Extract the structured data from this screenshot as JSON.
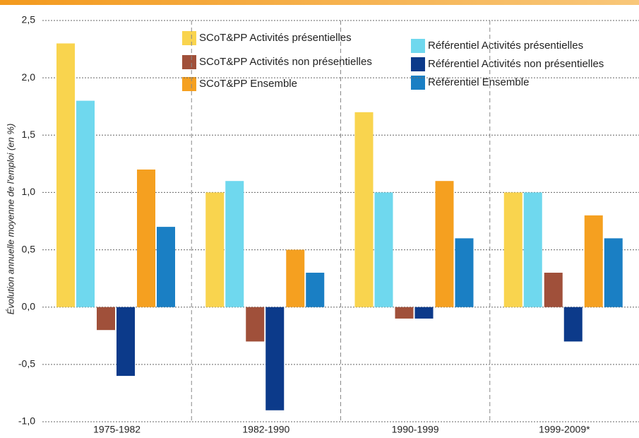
{
  "chart_data": {
    "type": "bar",
    "y_label": "Évolution annuelle moyenne de l'emploi (en %)",
    "categories": [
      "1975-1982",
      "1982-1990",
      "1990-1999",
      "1999-2009*"
    ],
    "series": [
      {
        "name": "SCoT&PP Activités présentielles",
        "color": "#f9d44e",
        "values": [
          2.3,
          1.0,
          1.7,
          1.0
        ]
      },
      {
        "name": "SCoT&PP Activités non présentielles",
        "color": "#a0503a",
        "values": [
          -0.2,
          -0.3,
          -0.1,
          0.3
        ]
      },
      {
        "name": "SCoT&PP Ensemble",
        "color": "#f5a020",
        "values": [
          1.2,
          0.5,
          1.1,
          0.8
        ]
      },
      {
        "name": "Référentiel Activités présentielles",
        "color": "#6fd8ee",
        "values": [
          1.8,
          1.1,
          1.0,
          1.0
        ]
      },
      {
        "name": "Référentiel Activités non présentielles",
        "color": "#0c3a8a",
        "values": [
          -0.6,
          -0.9,
          -0.1,
          -0.3
        ]
      },
      {
        "name": "Référentiel Ensemble",
        "color": "#1a7fc4",
        "values": [
          0.7,
          0.3,
          0.6,
          0.6
        ]
      }
    ],
    "ylim": [
      -1.0,
      2.5
    ],
    "yticks": [
      {
        "value": 2.5,
        "label": "2,5"
      },
      {
        "value": 2.0,
        "label": "2,0"
      },
      {
        "value": 1.5,
        "label": "1,5"
      },
      {
        "value": 1.0,
        "label": "1,0"
      },
      {
        "value": 0.5,
        "label": "0,5"
      },
      {
        "value": 0.0,
        "label": "0,0"
      },
      {
        "value": -0.5,
        "label": "-0,5"
      },
      {
        "value": -1.0,
        "label": "-1,0"
      }
    ],
    "grid": true
  }
}
